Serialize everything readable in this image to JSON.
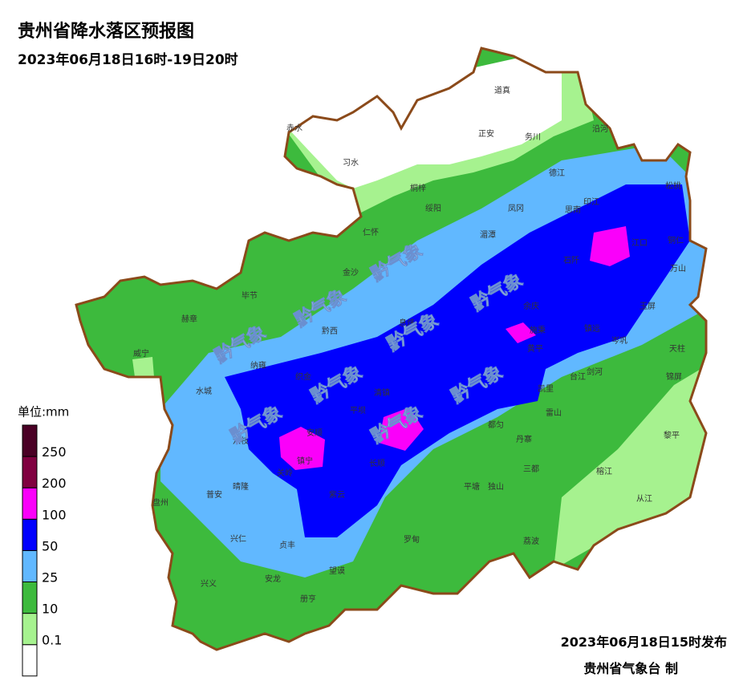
{
  "title": "贵州省降水落区预报图",
  "subtitle": "2023年06月18日16时-19日20时",
  "legend": {
    "unit": "单位:mm",
    "levels": [
      0.1,
      10,
      25,
      50,
      100,
      200,
      250
    ],
    "colors": [
      "#ffffff",
      "#a6f28f",
      "#3dba3d",
      "#61b8ff",
      "#0000fe",
      "#fa00fa",
      "#800040",
      "#4a0025"
    ]
  },
  "watermark": "黔气象",
  "counties": [
    "道真",
    "赤水",
    "正安",
    "务川",
    "沿河",
    "习水",
    "桐梓",
    "德江",
    "松桃",
    "绥阳",
    "凤冈",
    "思南",
    "印江",
    "仁怀",
    "湄潭",
    "江口",
    "铜仁",
    "石阡",
    "万山",
    "金沙",
    "毕节",
    "赫章",
    "余庆",
    "玉屏",
    "黔西",
    "息烽",
    "施秉",
    "镇远",
    "岑巩",
    "威宁",
    "黄平",
    "天柱",
    "纳雍",
    "织金",
    "台江",
    "剑河",
    "锦屏",
    "水城",
    "清镇",
    "凯里",
    "平坝",
    "雷山",
    "都匀",
    "六枝",
    "安顺",
    "丹寨",
    "黎平",
    "镇宁",
    "长顺",
    "三都",
    "关岭",
    "平塘",
    "独山",
    "榕江",
    "普安",
    "晴隆",
    "紫云",
    "盘州",
    "从江",
    "兴仁",
    "罗甸",
    "贞丰",
    "荔波",
    "望谟",
    "安龙",
    "兴义",
    "册亨"
  ],
  "footer": {
    "issued": "2023年06月18日15时发布",
    "agency": "贵州省气象台 制"
  }
}
